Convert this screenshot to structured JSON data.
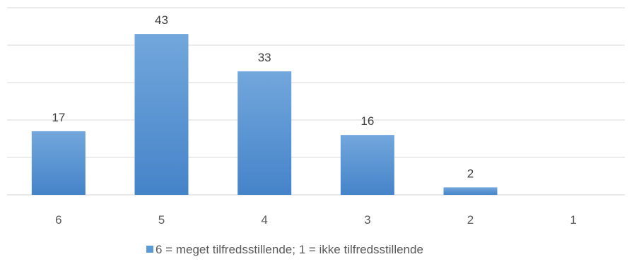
{
  "chart_data": {
    "type": "bar",
    "categories": [
      "6",
      "5",
      "4",
      "3",
      "2",
      "1"
    ],
    "series": [
      {
        "name": "6 = meget tilfredsstillende; 1 = ikke tilfredsstillende",
        "values": [
          17,
          43,
          33,
          16,
          2,
          0
        ],
        "labels": [
          "17",
          "43",
          "33",
          "16",
          "2",
          ""
        ]
      }
    ],
    "ylim": [
      0,
      50
    ],
    "gridlines": true,
    "gridline_values": [
      0,
      10,
      20,
      30,
      40,
      50
    ],
    "show_y_tick_labels": false,
    "legend_position": "bottom",
    "colors": {
      "bar_top": "#72a7dc",
      "bar_bottom": "#4583c9",
      "legend_swatch": "#5b9bd5"
    }
  }
}
